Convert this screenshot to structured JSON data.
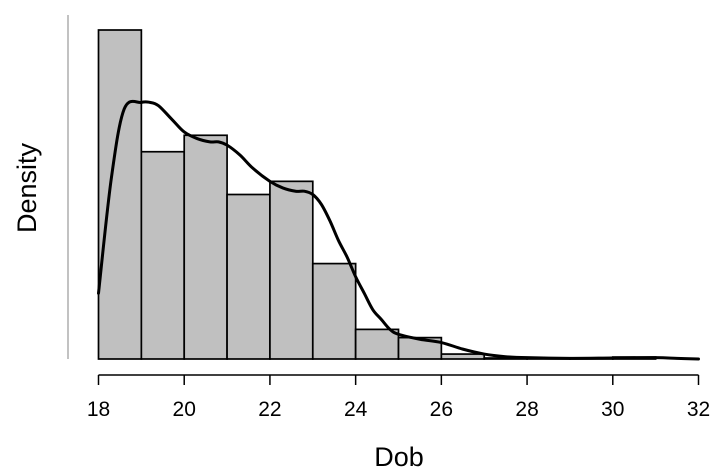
{
  "chart_data": {
    "type": "bar",
    "subtype": "histogram-with-density",
    "xlabel": "Dob",
    "ylabel": "Density",
    "xlim": [
      18,
      32
    ],
    "xticks": [
      18,
      20,
      22,
      24,
      26,
      28,
      30,
      32
    ],
    "y_tick_labels_shown": false,
    "grid": false,
    "bins": [
      {
        "x0": 18,
        "x1": 19,
        "value": 1.0
      },
      {
        "x0": 19,
        "x1": 20,
        "value": 0.63
      },
      {
        "x0": 20,
        "x1": 21,
        "value": 0.68
      },
      {
        "x0": 21,
        "x1": 22,
        "value": 0.5
      },
      {
        "x0": 22,
        "x1": 23,
        "value": 0.54
      },
      {
        "x0": 23,
        "x1": 24,
        "value": 0.29
      },
      {
        "x0": 24,
        "x1": 25,
        "value": 0.09
      },
      {
        "x0": 25,
        "x1": 26,
        "value": 0.065
      },
      {
        "x0": 26,
        "x1": 27,
        "value": 0.015
      },
      {
        "x0": 27,
        "x1": 28,
        "value": 0.003
      },
      {
        "x0": 28,
        "x1": 29,
        "value": 0.002
      },
      {
        "x0": 29,
        "x1": 30,
        "value": 0.002
      },
      {
        "x0": 30,
        "x1": 31,
        "value": 0.006
      }
    ],
    "density_curve": {
      "x": [
        18.0,
        18.3,
        18.6,
        19.0,
        19.2,
        19.4,
        19.7,
        20.0,
        20.3,
        20.6,
        20.8,
        21.0,
        21.3,
        21.6,
        22.0,
        22.3,
        22.6,
        22.8,
        23.0,
        23.2,
        23.4,
        23.6,
        23.8,
        24.0,
        24.2,
        24.4,
        24.6,
        24.8,
        25.0,
        25.5,
        26.0,
        26.5,
        27.0,
        27.5,
        28.0,
        29.0,
        30.0,
        31.0,
        31.5,
        32.0
      ],
      "y": [
        0.2,
        0.55,
        0.76,
        0.78,
        0.78,
        0.77,
        0.73,
        0.69,
        0.67,
        0.66,
        0.66,
        0.65,
        0.62,
        0.58,
        0.54,
        0.52,
        0.51,
        0.51,
        0.5,
        0.47,
        0.42,
        0.36,
        0.31,
        0.25,
        0.2,
        0.15,
        0.12,
        0.09,
        0.075,
        0.06,
        0.05,
        0.03,
        0.015,
        0.007,
        0.004,
        0.002,
        0.003,
        0.004,
        0.002,
        0.0
      ]
    }
  }
}
